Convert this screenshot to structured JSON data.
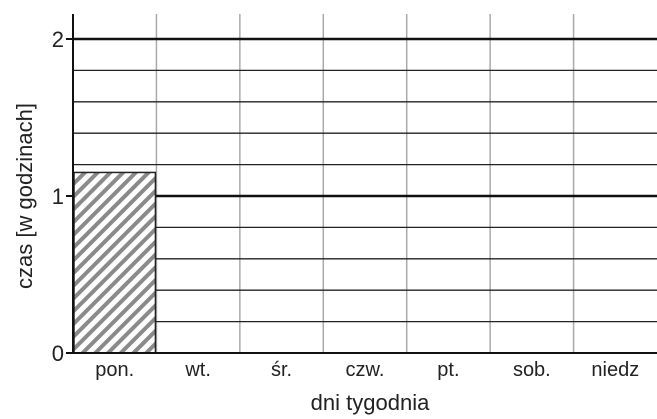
{
  "chart_data": {
    "type": "bar",
    "categories": [
      "pon.",
      "wt.",
      "śr.",
      "czw.",
      "pt.",
      "sob.",
      "niedz"
    ],
    "values": [
      1.15,
      0,
      0,
      0,
      0,
      0,
      0
    ],
    "xlabel": "dni tygodnia",
    "ylabel": "czas [w godzinach]",
    "ylim": [
      0,
      2.1
    ],
    "yticks": [
      "0",
      "1",
      "2"
    ],
    "grid": true,
    "bar_fill": "hatched",
    "colors": {
      "hatch": "#8a8a8a",
      "axis": "#111111",
      "grid_major": "#111111",
      "grid_minor": "#222222",
      "grid_vertical": "#aaaaaa"
    }
  }
}
